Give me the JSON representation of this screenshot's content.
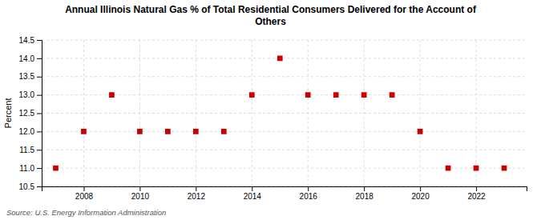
{
  "chart_data": {
    "type": "scatter",
    "title": "Annual Illinois Natural Gas % of Total Residential Consumers Delivered for the Account of\nOthers",
    "ylabel": "Percent",
    "source": "Source: U.S. Energy Information Administration",
    "x": [
      2007,
      2008,
      2009,
      2010,
      2011,
      2012,
      2013,
      2014,
      2015,
      2016,
      2017,
      2018,
      2019,
      2020,
      2021,
      2022,
      2023
    ],
    "values": [
      11.0,
      12.0,
      13.0,
      12.0,
      12.0,
      12.0,
      12.0,
      13.0,
      14.0,
      13.0,
      13.0,
      13.0,
      13.0,
      12.0,
      11.0,
      11.0,
      11.0
    ],
    "color": "#cc0000",
    "marker": "square",
    "grid": true,
    "xlim": [
      2006.5,
      2023.8
    ],
    "xticks": [
      2008,
      2010,
      2012,
      2014,
      2016,
      2018,
      2020,
      2022
    ],
    "ylim": [
      10.5,
      14.5
    ],
    "yticks": [
      10.5,
      {
        "value": 11.0,
        "label": "11.0"
      },
      11.5,
      {
        "value": 12.0,
        "label": "12.0"
      },
      12.5,
      {
        "value": 13.0,
        "label": "13.0"
      },
      13.5,
      {
        "value": 14.0,
        "label": "14.0"
      },
      14.5
    ]
  }
}
